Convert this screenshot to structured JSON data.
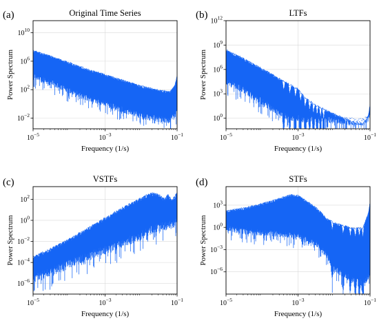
{
  "colors": {
    "series": "#1565f5",
    "axis": "#000000",
    "grid": "#d9d9d9"
  },
  "chart_data": [
    {
      "type": "line",
      "panel_label": "(a)",
      "title": "Original Time Series",
      "xlabel": "Frequency (1/s)",
      "ylabel": "Power Spectrum",
      "xscale": "log",
      "yscale": "log",
      "xlim_log10": [
        -5,
        -1
      ],
      "ylim_log10": [
        -3.5,
        11.7
      ],
      "xticks": [
        {
          "exp": -5,
          "label": "10^-5"
        },
        {
          "exp": -3,
          "label": "10^-3"
        },
        {
          "exp": -1,
          "label": "10^-1"
        }
      ],
      "yticks": [
        {
          "exp": 10,
          "label": "10^10"
        },
        {
          "exp": 6,
          "label": "10^6"
        },
        {
          "exp": 2,
          "label": "10^2"
        },
        {
          "exp": -2,
          "label": "10^-2"
        }
      ],
      "grid": true,
      "series": [
        {
          "upper_log10": [
            [
              -5,
              7.6
            ],
            [
              -4.5,
              6.8
            ],
            [
              -4,
              5.9
            ],
            [
              -3.5,
              5.0
            ],
            [
              -3,
              4.2
            ],
            [
              -2.5,
              3.4
            ],
            [
              -2,
              2.6
            ],
            [
              -1.5,
              2.0
            ],
            [
              -1.2,
              1.8
            ],
            [
              -1.07,
              2.6
            ],
            [
              -1,
              4.0
            ]
          ],
          "lower_log10": [
            [
              -5,
              3.3
            ],
            [
              -4.5,
              2.5
            ],
            [
              -4,
              1.4
            ],
            [
              -3.5,
              0.4
            ],
            [
              -3,
              -0.5
            ],
            [
              -2.5,
              -1.3
            ],
            [
              -2,
              -2.1
            ],
            [
              -1.5,
              -2.6
            ],
            [
              -1.2,
              -2.8
            ],
            [
              -1.05,
              -2.0
            ],
            [
              -1,
              -1.2
            ]
          ]
        }
      ]
    },
    {
      "type": "line",
      "panel_label": "(b)",
      "title": "LTFs",
      "xlabel": "Frequency (1/s)",
      "ylabel": "Power Spectrum",
      "xscale": "log",
      "yscale": "log",
      "xlim_log10": [
        -5,
        -1
      ],
      "ylim_log10": [
        -1.3,
        12.0
      ],
      "xticks": [
        {
          "exp": -5,
          "label": "10^-5"
        },
        {
          "exp": -3,
          "label": "10^-3"
        },
        {
          "exp": -1,
          "label": "10^-1"
        }
      ],
      "yticks": [
        {
          "exp": 12,
          "label": "10^12"
        },
        {
          "exp": 9,
          "label": "10^9"
        },
        {
          "exp": 6,
          "label": "10^6"
        },
        {
          "exp": 3,
          "label": "10^3"
        },
        {
          "exp": 0,
          "label": "10^0"
        }
      ],
      "grid": true,
      "series": [
        {
          "upper_log10": [
            [
              -5,
              8.5
            ],
            [
              -4.5,
              7.4
            ],
            [
              -4,
              6.2
            ],
            [
              -3.5,
              4.9
            ],
            [
              -3,
              3.7
            ],
            [
              -2.8,
              2.6
            ],
            [
              -2.5,
              1.7
            ],
            [
              -2,
              0.6
            ],
            [
              -1.5,
              -0.3
            ],
            [
              -1.2,
              -0.6
            ],
            [
              -1.05,
              0.4
            ],
            [
              -1,
              1.8
            ]
          ],
          "lower_log10": [
            [
              -5,
              4.0
            ],
            [
              -4.5,
              3.0
            ],
            [
              -4,
              1.6
            ],
            [
              -3.5,
              0.0
            ],
            [
              -3,
              -0.5
            ],
            [
              -2.5,
              -0.6
            ],
            [
              -2,
              -0.7
            ],
            [
              -1.5,
              -0.9
            ],
            [
              -1.2,
              -1.0
            ],
            [
              -1.05,
              -0.6
            ],
            [
              -1,
              -0.2
            ]
          ],
          "dips_log10": [
            -3.4,
            -3.23,
            -3.07,
            -2.93,
            -2.8,
            -2.68,
            -2.57,
            -2.47,
            -2.38,
            -2.29
          ]
        }
      ]
    },
    {
      "type": "line",
      "panel_label": "(c)",
      "title": "VSTFs",
      "xlabel": "Frequency (1/s)",
      "ylabel": "Power Spectrum",
      "xscale": "log",
      "yscale": "log",
      "xlim_log10": [
        -5,
        -1
      ],
      "ylim_log10": [
        -7.0,
        3.2
      ],
      "xticks": [
        {
          "exp": -5,
          "label": "10^-5"
        },
        {
          "exp": -3,
          "label": "10^-3"
        },
        {
          "exp": -1,
          "label": "10^-1"
        }
      ],
      "yticks": [
        {
          "exp": 2,
          "label": "10^2"
        },
        {
          "exp": 0,
          "label": "10^0"
        },
        {
          "exp": -2,
          "label": "10^-2"
        },
        {
          "exp": -4,
          "label": "10^-4"
        },
        {
          "exp": -6,
          "label": "10^-6"
        }
      ],
      "grid": true,
      "series": [
        {
          "upper_log10": [
            [
              -5,
              -3.4
            ],
            [
              -4.5,
              -2.6
            ],
            [
              -4,
              -1.7
            ],
            [
              -3.5,
              -0.7
            ],
            [
              -3,
              0.3
            ],
            [
              -2.5,
              1.3
            ],
            [
              -2,
              2.2
            ],
            [
              -1.7,
              2.7
            ],
            [
              -1.5,
              2.5
            ],
            [
              -1.35,
              2.1
            ],
            [
              -1.25,
              2.5
            ],
            [
              -1.15,
              2.0
            ],
            [
              -1.05,
              2.4
            ],
            [
              -1,
              2.8
            ]
          ],
          "lower_log10": [
            [
              -5,
              -6.0
            ],
            [
              -4.5,
              -5.4
            ],
            [
              -4,
              -4.6
            ],
            [
              -3.5,
              -3.9
            ],
            [
              -3,
              -3.3
            ],
            [
              -2.5,
              -2.6
            ],
            [
              -2,
              -1.9
            ],
            [
              -1.7,
              -1.4
            ],
            [
              -1.5,
              -1.1
            ],
            [
              -1.2,
              -0.9
            ],
            [
              -1,
              -0.6
            ]
          ]
        }
      ]
    },
    {
      "type": "line",
      "panel_label": "(d)",
      "title": "STFs",
      "xlabel": "Frequency (1/s)",
      "ylabel": "Power Spectrum",
      "xscale": "log",
      "yscale": "log",
      "xlim_log10": [
        -5,
        -1
      ],
      "ylim_log10": [
        -9.0,
        5.5
      ],
      "xticks": [
        {
          "exp": -5,
          "label": "10^-5"
        },
        {
          "exp": -3,
          "label": "10^-3"
        },
        {
          "exp": -1,
          "label": "10^-1"
        }
      ],
      "yticks": [
        {
          "exp": 3,
          "label": "10^3"
        },
        {
          "exp": 0,
          "label": "10^0"
        },
        {
          "exp": -3,
          "label": "10^-3"
        },
        {
          "exp": -6,
          "label": "10^-6"
        }
      ],
      "grid": true,
      "series": [
        {
          "upper_log10": [
            [
              -5,
              2.3
            ],
            [
              -4.5,
              2.7
            ],
            [
              -4,
              3.3
            ],
            [
              -3.5,
              4.0
            ],
            [
              -3.2,
              4.5
            ],
            [
              -3,
              4.4
            ],
            [
              -2.5,
              2.8
            ],
            [
              -2.2,
              1.3
            ],
            [
              -2,
              0.7
            ],
            [
              -1.5,
              0.0
            ],
            [
              -1.2,
              0.0
            ],
            [
              -1.05,
              2.0
            ],
            [
              -1,
              3.5
            ]
          ],
          "lower_log10": [
            [
              -5,
              -0.5
            ],
            [
              -4.5,
              -1.0
            ],
            [
              -4,
              -1.2
            ],
            [
              -3.5,
              -1.3
            ],
            [
              -3,
              -1.7
            ],
            [
              -2.5,
              -2.6
            ],
            [
              -2.2,
              -4.2
            ],
            [
              -2,
              -6.0
            ],
            [
              -1.5,
              -7.5
            ],
            [
              -1.2,
              -8.0
            ],
            [
              -1,
              -7.0
            ]
          ],
          "dips_log10": [
            -2.05,
            -1.75,
            -1.55,
            -1.41,
            -1.3,
            -1.2
          ]
        }
      ]
    }
  ]
}
